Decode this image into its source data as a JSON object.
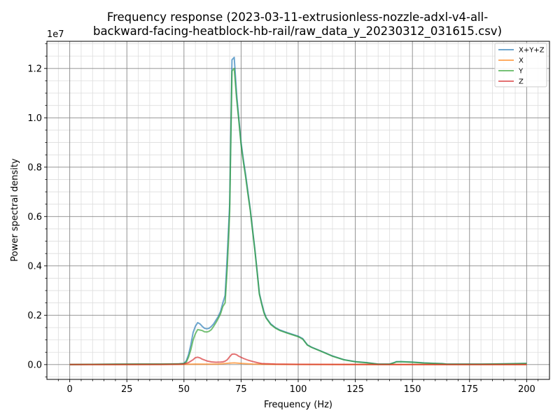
{
  "chart_data": {
    "type": "line",
    "title_lines": [
      "Frequency response (2023-03-11-extrusionless-nozzle-adxl-v4-all-",
      "backward-facing-heatblock-hb-rail/raw_data_y_20230312_031615.csv)"
    ],
    "xlabel": "Frequency (Hz)",
    "ylabel": "Power spectral density",
    "y_offset_label": "1e7",
    "xlim": [
      -10,
      210
    ],
    "ylim": [
      -600000,
      13100000
    ],
    "x_ticks": [
      0,
      25,
      50,
      75,
      100,
      125,
      150,
      175,
      200
    ],
    "x_tick_labels": [
      "0",
      "25",
      "50",
      "75",
      "100",
      "125",
      "150",
      "175",
      "200"
    ],
    "y_ticks": [
      0,
      2000000,
      4000000,
      6000000,
      8000000,
      10000000,
      12000000
    ],
    "y_tick_labels": [
      "0.0",
      "0.2",
      "0.4",
      "0.6",
      "0.8",
      "1.0",
      "1.2"
    ],
    "grid": true,
    "legend_position": "top-right",
    "series": [
      {
        "name": "X+Y+Z",
        "color": "#1f77b4",
        "x": [
          0,
          10,
          20,
          30,
          40,
          48,
          50,
          51,
          52,
          53,
          54,
          55,
          56,
          57,
          58,
          59,
          60,
          61,
          62,
          63,
          64,
          65,
          66,
          67,
          68,
          69,
          70,
          71,
          72,
          73,
          74,
          75,
          76,
          77,
          78,
          79,
          80,
          81,
          82,
          83,
          84,
          85,
          86,
          88,
          90,
          92,
          95,
          100,
          102,
          104,
          106,
          110,
          115,
          120,
          125,
          130,
          135,
          140,
          142,
          143,
          145,
          150,
          155,
          160,
          163,
          165,
          170,
          180,
          190,
          200
        ],
        "values": [
          0,
          10000,
          15000,
          20000,
          20000,
          30000,
          50000,
          150000,
          400000,
          800000,
          1300000,
          1550000,
          1700000,
          1650000,
          1550000,
          1470000,
          1450000,
          1470000,
          1550000,
          1650000,
          1800000,
          1950000,
          2150000,
          2500000,
          2800000,
          4500000,
          6500000,
          12350000,
          12450000,
          11000000,
          10000000,
          9000000,
          8300000,
          7700000,
          7000000,
          6300000,
          5500000,
          4700000,
          3800000,
          2900000,
          2500000,
          2150000,
          1900000,
          1650000,
          1500000,
          1400000,
          1300000,
          1150000,
          1050000,
          800000,
          700000,
          550000,
          350000,
          200000,
          120000,
          80000,
          20000,
          20000,
          80000,
          120000,
          120000,
          100000,
          70000,
          50000,
          40000,
          20000,
          20000,
          20000,
          30000,
          50000
        ]
      },
      {
        "name": "X",
        "color": "#ff7f0e",
        "x": [
          0,
          20,
          40,
          50,
          55,
          60,
          65,
          70,
          72,
          75,
          80,
          90,
          100,
          120,
          150,
          175,
          200
        ],
        "values": [
          0,
          5000,
          8000,
          10000,
          20000,
          15000,
          20000,
          60000,
          70000,
          50000,
          20000,
          10000,
          8000,
          5000,
          5000,
          5000,
          5000
        ]
      },
      {
        "name": "Y",
        "color": "#2ca02c",
        "x": [
          0,
          10,
          20,
          30,
          40,
          48,
          50,
          51,
          52,
          53,
          54,
          55,
          56,
          57,
          58,
          59,
          60,
          61,
          62,
          63,
          64,
          65,
          66,
          67,
          68,
          69,
          70,
          71,
          72,
          73,
          74,
          75,
          76,
          77,
          78,
          79,
          80,
          81,
          82,
          83,
          84,
          85,
          86,
          88,
          90,
          92,
          95,
          100,
          102,
          104,
          106,
          110,
          115,
          120,
          125,
          130,
          135,
          140,
          142,
          143,
          145,
          150,
          155,
          160,
          163,
          165,
          170,
          180,
          190,
          200
        ],
        "values": [
          0,
          10000,
          15000,
          20000,
          20000,
          30000,
          40000,
          100000,
          300000,
          600000,
          1000000,
          1250000,
          1420000,
          1400000,
          1380000,
          1330000,
          1320000,
          1350000,
          1420000,
          1550000,
          1700000,
          1870000,
          2050000,
          2350000,
          2500000,
          4000000,
          6200000,
          11900000,
          12000000,
          10800000,
          9900000,
          8900000,
          8200000,
          7600000,
          6900000,
          6250000,
          5450000,
          4650000,
          3750000,
          2850000,
          2450000,
          2100000,
          1880000,
          1620000,
          1480000,
          1380000,
          1280000,
          1130000,
          1030000,
          790000,
          690000,
          540000,
          340000,
          195000,
          115000,
          75000,
          18000,
          18000,
          75000,
          110000,
          115000,
          95000,
          65000,
          45000,
          35000,
          18000,
          18000,
          18000,
          28000,
          45000
        ]
      },
      {
        "name": "Z",
        "color": "#d62728",
        "x": [
          0,
          20,
          40,
          48,
          50,
          52,
          54,
          55,
          56,
          57,
          58,
          60,
          62,
          64,
          66,
          67,
          68,
          69,
          70,
          71,
          72,
          73,
          74,
          76,
          78,
          80,
          82,
          84,
          90,
          100,
          120,
          150,
          175,
          200
        ],
        "values": [
          0,
          5000,
          8000,
          15000,
          20000,
          80000,
          200000,
          280000,
          300000,
          270000,
          220000,
          150000,
          110000,
          95000,
          100000,
          110000,
          140000,
          200000,
          320000,
          420000,
          430000,
          400000,
          340000,
          250000,
          180000,
          130000,
          80000,
          40000,
          20000,
          10000,
          8000,
          5000,
          5000,
          5000
        ]
      }
    ]
  }
}
